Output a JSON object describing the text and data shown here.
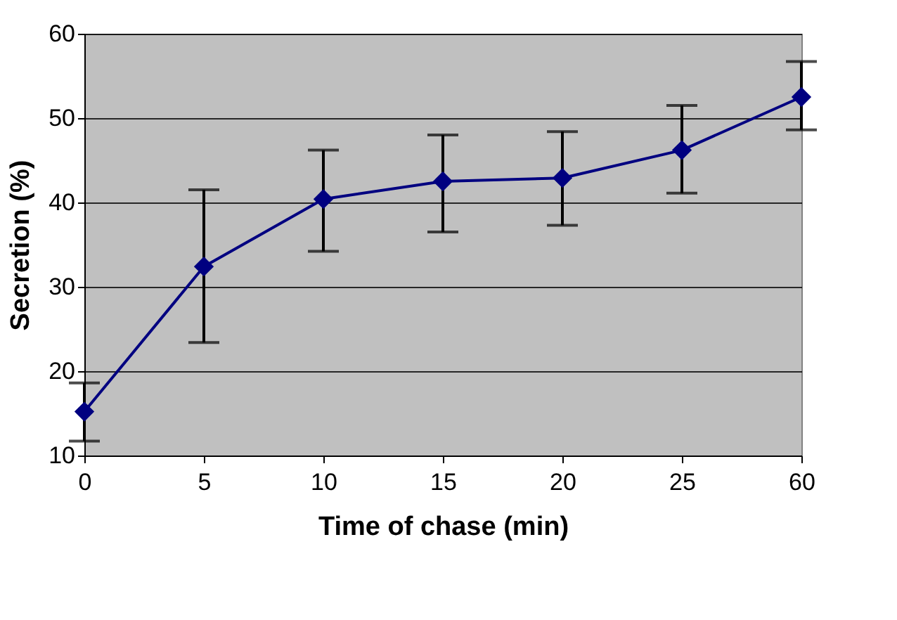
{
  "chart_data": {
    "type": "line",
    "xlabel": "Time of chase (min)",
    "ylabel": "Secretion (%)",
    "categories": [
      "0",
      "5",
      "10",
      "15",
      "20",
      "25",
      "60"
    ],
    "series": [
      {
        "color": "#000080",
        "values": [
          15.2,
          32.4,
          40.4,
          42.5,
          42.9,
          46.2,
          52.5
        ],
        "errors": [
          [
            11.7,
            18.6
          ],
          [
            23.4,
            41.5
          ],
          [
            34.2,
            46.2
          ],
          [
            36.5,
            48.0
          ],
          [
            37.3,
            48.4
          ],
          [
            41.1,
            51.5
          ],
          [
            48.6,
            56.7
          ]
        ]
      }
    ],
    "ylim": [
      10,
      60
    ],
    "yticks": [
      10,
      20,
      30,
      40,
      50,
      60
    ],
    "grid": "y",
    "marker": "diamond",
    "line_style": "solid"
  }
}
